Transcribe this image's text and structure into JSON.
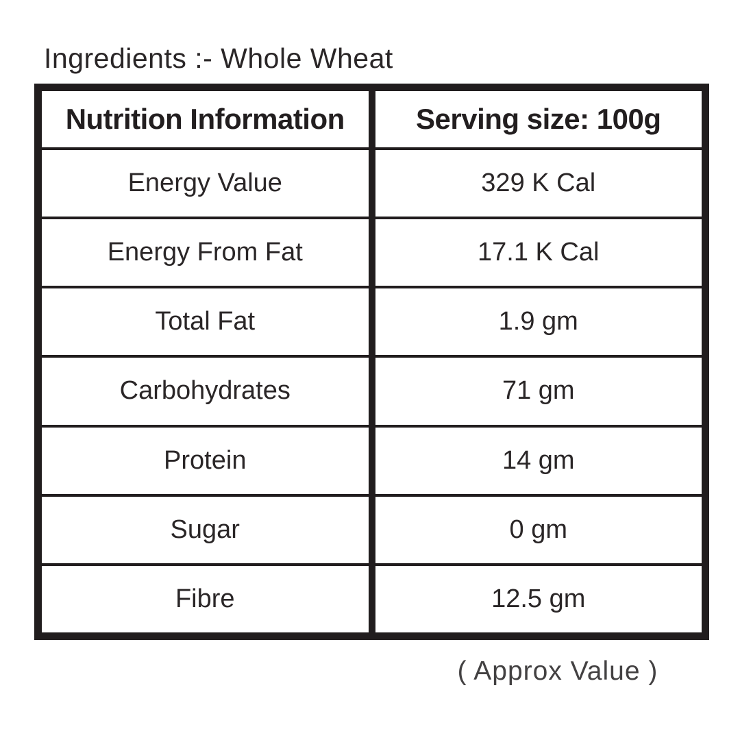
{
  "page": {
    "ingredients_label": "Ingredients :- Whole Wheat",
    "approx_note": "( Approx Value )"
  },
  "table": {
    "header": {
      "left": "Nutrition Information",
      "right": "Serving size: 100g"
    },
    "rows": [
      {
        "label": "Energy Value",
        "value": "329 K Cal"
      },
      {
        "label": "Energy From Fat",
        "value": "17.1 K Cal"
      },
      {
        "label": "Total Fat",
        "value": "1.9 gm"
      },
      {
        "label": "Carbohydrates",
        "value": "71 gm"
      },
      {
        "label": "Protein",
        "value": "14 gm"
      },
      {
        "label": "Sugar",
        "value": "0 gm"
      },
      {
        "label": "Fibre",
        "value": "12.5 gm"
      }
    ]
  },
  "colors": {
    "border": "#211d1e",
    "text": "#2a2627",
    "note": "#434142"
  }
}
